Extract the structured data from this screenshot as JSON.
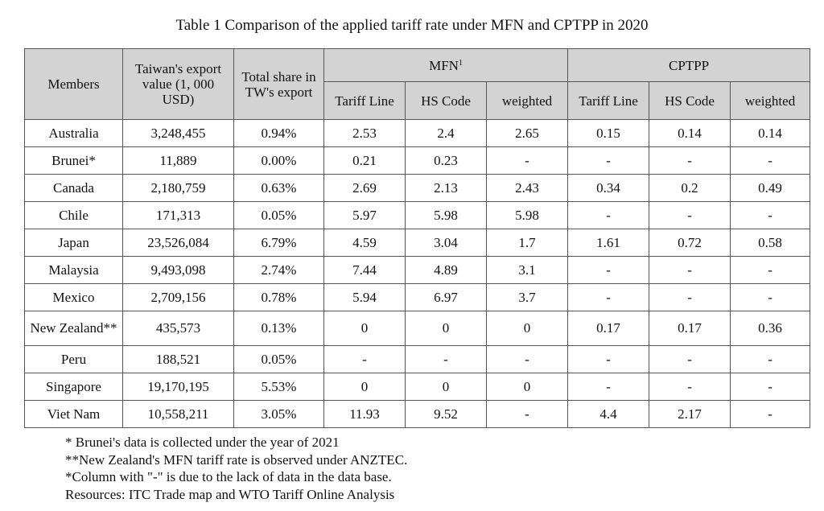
{
  "caption": "Table 1 Comparison of the applied tariff rate under MFN and CPTPP in 2020",
  "headers": {
    "members": "Members",
    "export_value": "Taiwan's export value (1, 000 USD)",
    "total_share": "Total share in TW's export",
    "mfn": "MFN",
    "mfn_sup": "1",
    "cptpp": "CPTPP",
    "tariff_line": "Tariff Line",
    "hs_code": "HS Code",
    "weighted": "weighted"
  },
  "rows": [
    {
      "member": "Australia",
      "export": "3,248,455",
      "share": "0.94%",
      "mfn_tl": "2.53",
      "mfn_hs": "2.4",
      "mfn_w": "2.65",
      "cp_tl": "0.15",
      "cp_hs": "0.14",
      "cp_w": "0.14"
    },
    {
      "member": "Brunei*",
      "export": "11,889",
      "share": "0.00%",
      "mfn_tl": "0.21",
      "mfn_hs": "0.23",
      "mfn_w": "-",
      "cp_tl": "-",
      "cp_hs": "-",
      "cp_w": "-"
    },
    {
      "member": "Canada",
      "export": "2,180,759",
      "share": "0.63%",
      "mfn_tl": "2.69",
      "mfn_hs": "2.13",
      "mfn_w": "2.43",
      "cp_tl": "0.34",
      "cp_hs": "0.2",
      "cp_w": "0.49"
    },
    {
      "member": "Chile",
      "export": "171,313",
      "share": "0.05%",
      "mfn_tl": "5.97",
      "mfn_hs": "5.98",
      "mfn_w": "5.98",
      "cp_tl": "-",
      "cp_hs": "-",
      "cp_w": "-"
    },
    {
      "member": "Japan",
      "export": "23,526,084",
      "share": "6.79%",
      "mfn_tl": "4.59",
      "mfn_hs": "3.04",
      "mfn_w": "1.7",
      "cp_tl": "1.61",
      "cp_hs": "0.72",
      "cp_w": "0.58"
    },
    {
      "member": "Malaysia",
      "export": "9,493,098",
      "share": "2.74%",
      "mfn_tl": "7.44",
      "mfn_hs": "4.89",
      "mfn_w": "3.1",
      "cp_tl": "-",
      "cp_hs": "-",
      "cp_w": "-"
    },
    {
      "member": "Mexico",
      "export": "2,709,156",
      "share": "0.78%",
      "mfn_tl": "5.94",
      "mfn_hs": "6.97",
      "mfn_w": "3.7",
      "cp_tl": "-",
      "cp_hs": "-",
      "cp_w": "-"
    },
    {
      "member": "New Zealand**",
      "export": "435,573",
      "share": "0.13%",
      "mfn_tl": "0",
      "mfn_hs": "0",
      "mfn_w": "0",
      "cp_tl": "0.17",
      "cp_hs": "0.17",
      "cp_w": "0.36"
    },
    {
      "member": "Peru",
      "export": "188,521",
      "share": "0.05%",
      "mfn_tl": "-",
      "mfn_hs": "-",
      "mfn_w": "-",
      "cp_tl": "-",
      "cp_hs": "-",
      "cp_w": "-"
    },
    {
      "member": "Singapore",
      "export": "19,170,195",
      "share": "5.53%",
      "mfn_tl": "0",
      "mfn_hs": "0",
      "mfn_w": "0",
      "cp_tl": "-",
      "cp_hs": "-",
      "cp_w": "-"
    },
    {
      "member": "Viet Nam",
      "export": "10,558,211",
      "share": "3.05%",
      "mfn_tl": "11.93",
      "mfn_hs": "9.52",
      "mfn_w": "-",
      "cp_tl": "4.4",
      "cp_hs": "2.17",
      "cp_w": "-"
    }
  ],
  "notes": [
    "* Brunei's data is collected under the year of 2021",
    "**New Zealand's MFN tariff rate is observed under ANZTEC.",
    "*Column with \"-\" is due to the lack of data in the data base.",
    "Resources: ITC Trade map and WTO Tariff Online Analysis"
  ]
}
